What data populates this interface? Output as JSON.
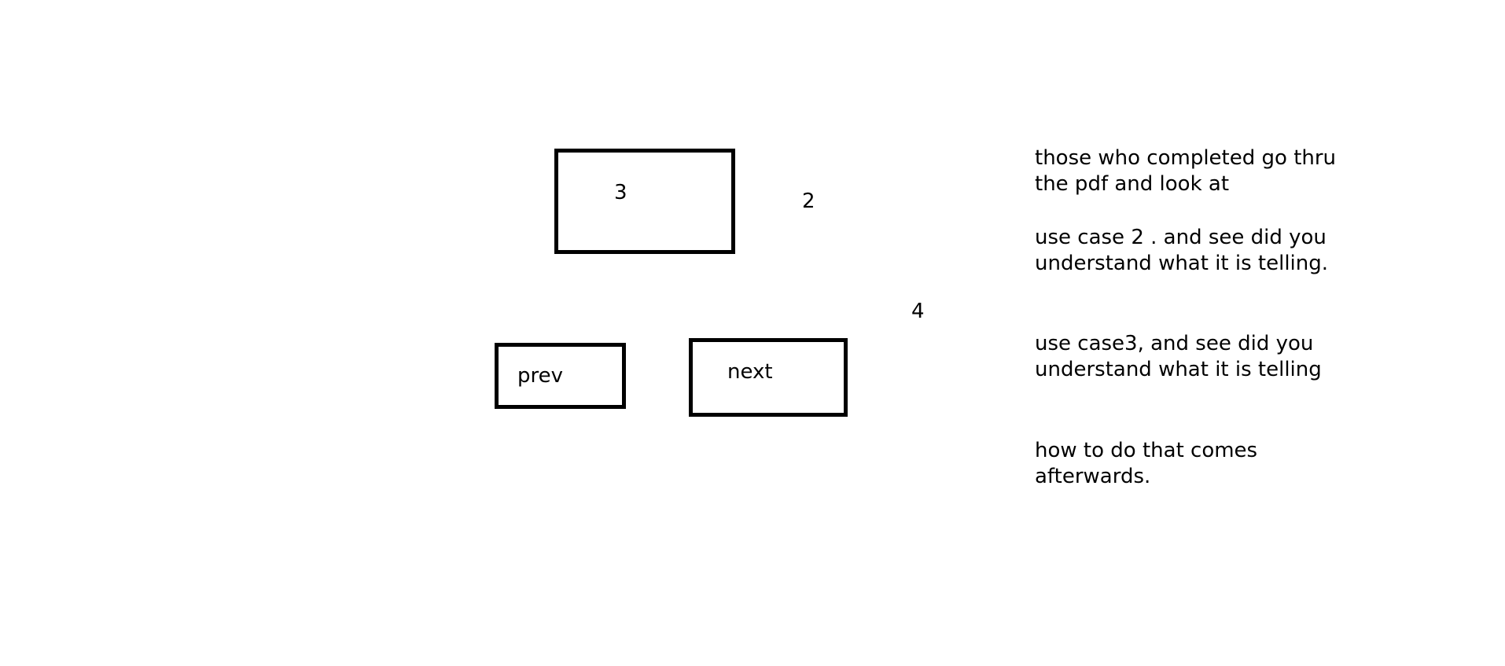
{
  "sketch": {
    "display_box_label": "3",
    "label_2": "2",
    "label_4": "4",
    "prev_button_label": "prev",
    "next_button_label": "next"
  },
  "notes": {
    "note_1": "those who completed go thru\nthe pdf and look at",
    "note_2": "use case 2 . and see did you\nunderstand what it is telling.",
    "note_3": "use case3, and see did you\nunderstand what it is telling",
    "note_4": "how to do that comes\nafterwards."
  }
}
